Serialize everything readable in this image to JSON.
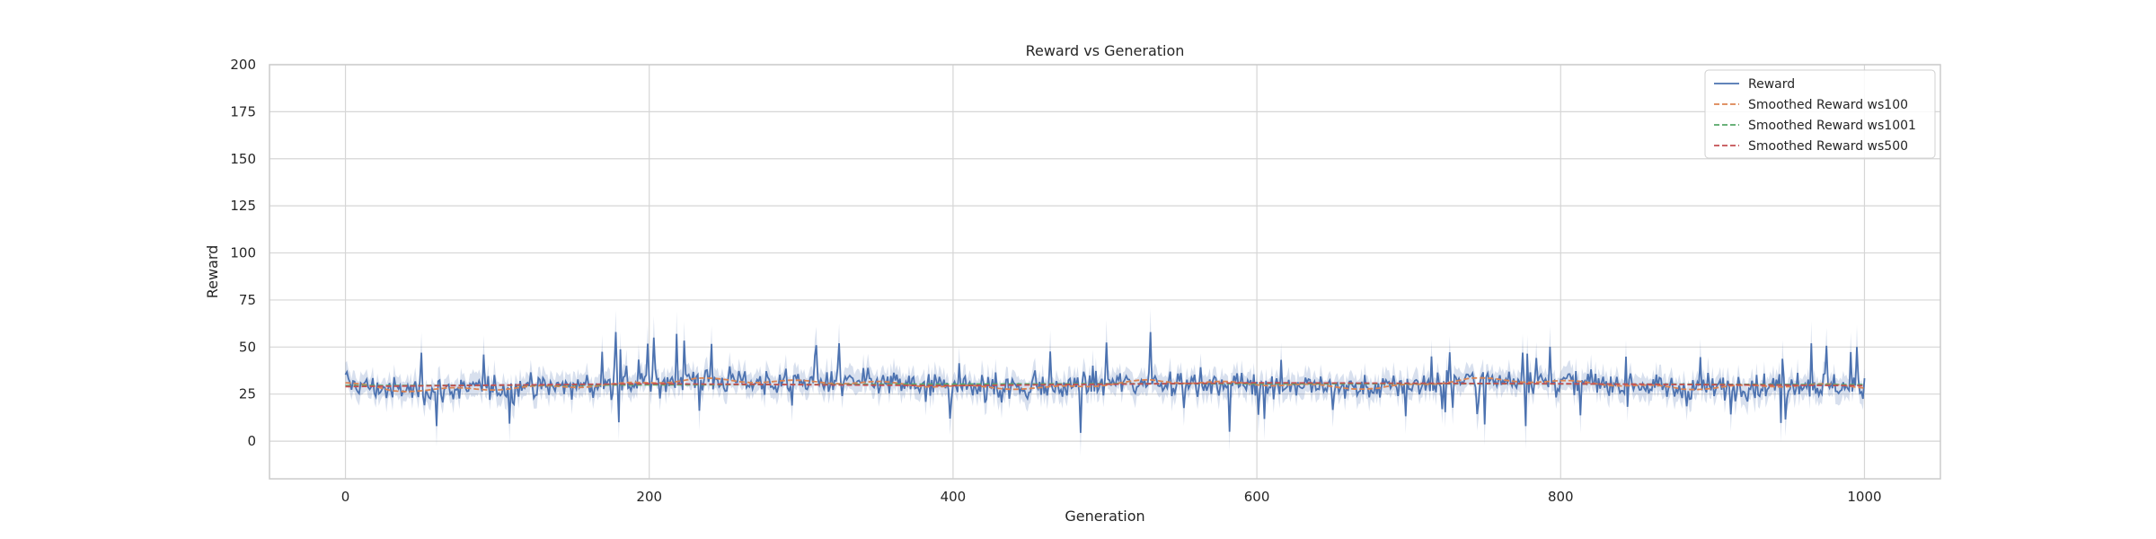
{
  "chart_data": {
    "type": "line",
    "title": "Reward vs Generation",
    "xlabel": "Generation",
    "ylabel": "Reward",
    "xlim": [
      -50,
      1050
    ],
    "ylim": [
      -20,
      200
    ],
    "xticks": [
      0,
      200,
      400,
      600,
      800,
      1000
    ],
    "yticks": [
      0,
      25,
      50,
      75,
      100,
      125,
      150,
      175,
      200
    ],
    "grid": true,
    "legend_position": "top-right",
    "x": {
      "start": 0,
      "end": 1000,
      "step": 1
    },
    "series": [
      {
        "name": "Reward",
        "style": "solid",
        "color": "#4c72b0",
        "band": true,
        "band_color": "#4c72b0",
        "approx_mean": 30,
        "approx_range": [
          5,
          60
        ],
        "notable_points": [
          {
            "x": 50,
            "y": 47
          },
          {
            "x": 60,
            "y": 8
          },
          {
            "x": 178,
            "y": 58
          },
          {
            "x": 180,
            "y": 10
          },
          {
            "x": 203,
            "y": 55
          },
          {
            "x": 218,
            "y": 57
          },
          {
            "x": 325,
            "y": 52
          },
          {
            "x": 398,
            "y": 12
          },
          {
            "x": 530,
            "y": 58
          },
          {
            "x": 582,
            "y": 5
          },
          {
            "x": 715,
            "y": 45
          },
          {
            "x": 775,
            "y": 47
          },
          {
            "x": 777,
            "y": 8
          },
          {
            "x": 965,
            "y": 52
          },
          {
            "x": 995,
            "y": 50
          }
        ]
      },
      {
        "name": "Smoothed Reward ws100",
        "style": "dashed",
        "color": "#dd8452",
        "keypoints": [
          [
            0,
            31
          ],
          [
            30,
            27
          ],
          [
            100,
            28
          ],
          [
            180,
            30
          ],
          [
            230,
            33
          ],
          [
            260,
            32
          ],
          [
            350,
            31
          ],
          [
            400,
            29
          ],
          [
            460,
            28
          ],
          [
            530,
            32
          ],
          [
            620,
            30
          ],
          [
            680,
            28
          ],
          [
            740,
            33
          ],
          [
            820,
            31
          ],
          [
            880,
            28
          ],
          [
            960,
            30
          ],
          [
            1000,
            29
          ]
        ]
      },
      {
        "name": "Smoothed Reward ws1001",
        "style": "dashed",
        "color": "#55a868",
        "keypoints": [
          [
            0,
            29.5
          ],
          [
            250,
            30
          ],
          [
            500,
            30.5
          ],
          [
            750,
            30.5
          ],
          [
            1000,
            30
          ]
        ]
      },
      {
        "name": "Smoothed Reward ws500",
        "style": "dashed",
        "color": "#c44e52",
        "keypoints": [
          [
            0,
            29
          ],
          [
            200,
            30.5
          ],
          [
            400,
            29.5
          ],
          [
            600,
            31
          ],
          [
            800,
            30.5
          ],
          [
            1000,
            29.5
          ]
        ]
      }
    ]
  },
  "colors": {
    "axes_edge": "#cccccc",
    "grid": "#d6d6d6",
    "text": "#262626",
    "background": "#ffffff"
  }
}
